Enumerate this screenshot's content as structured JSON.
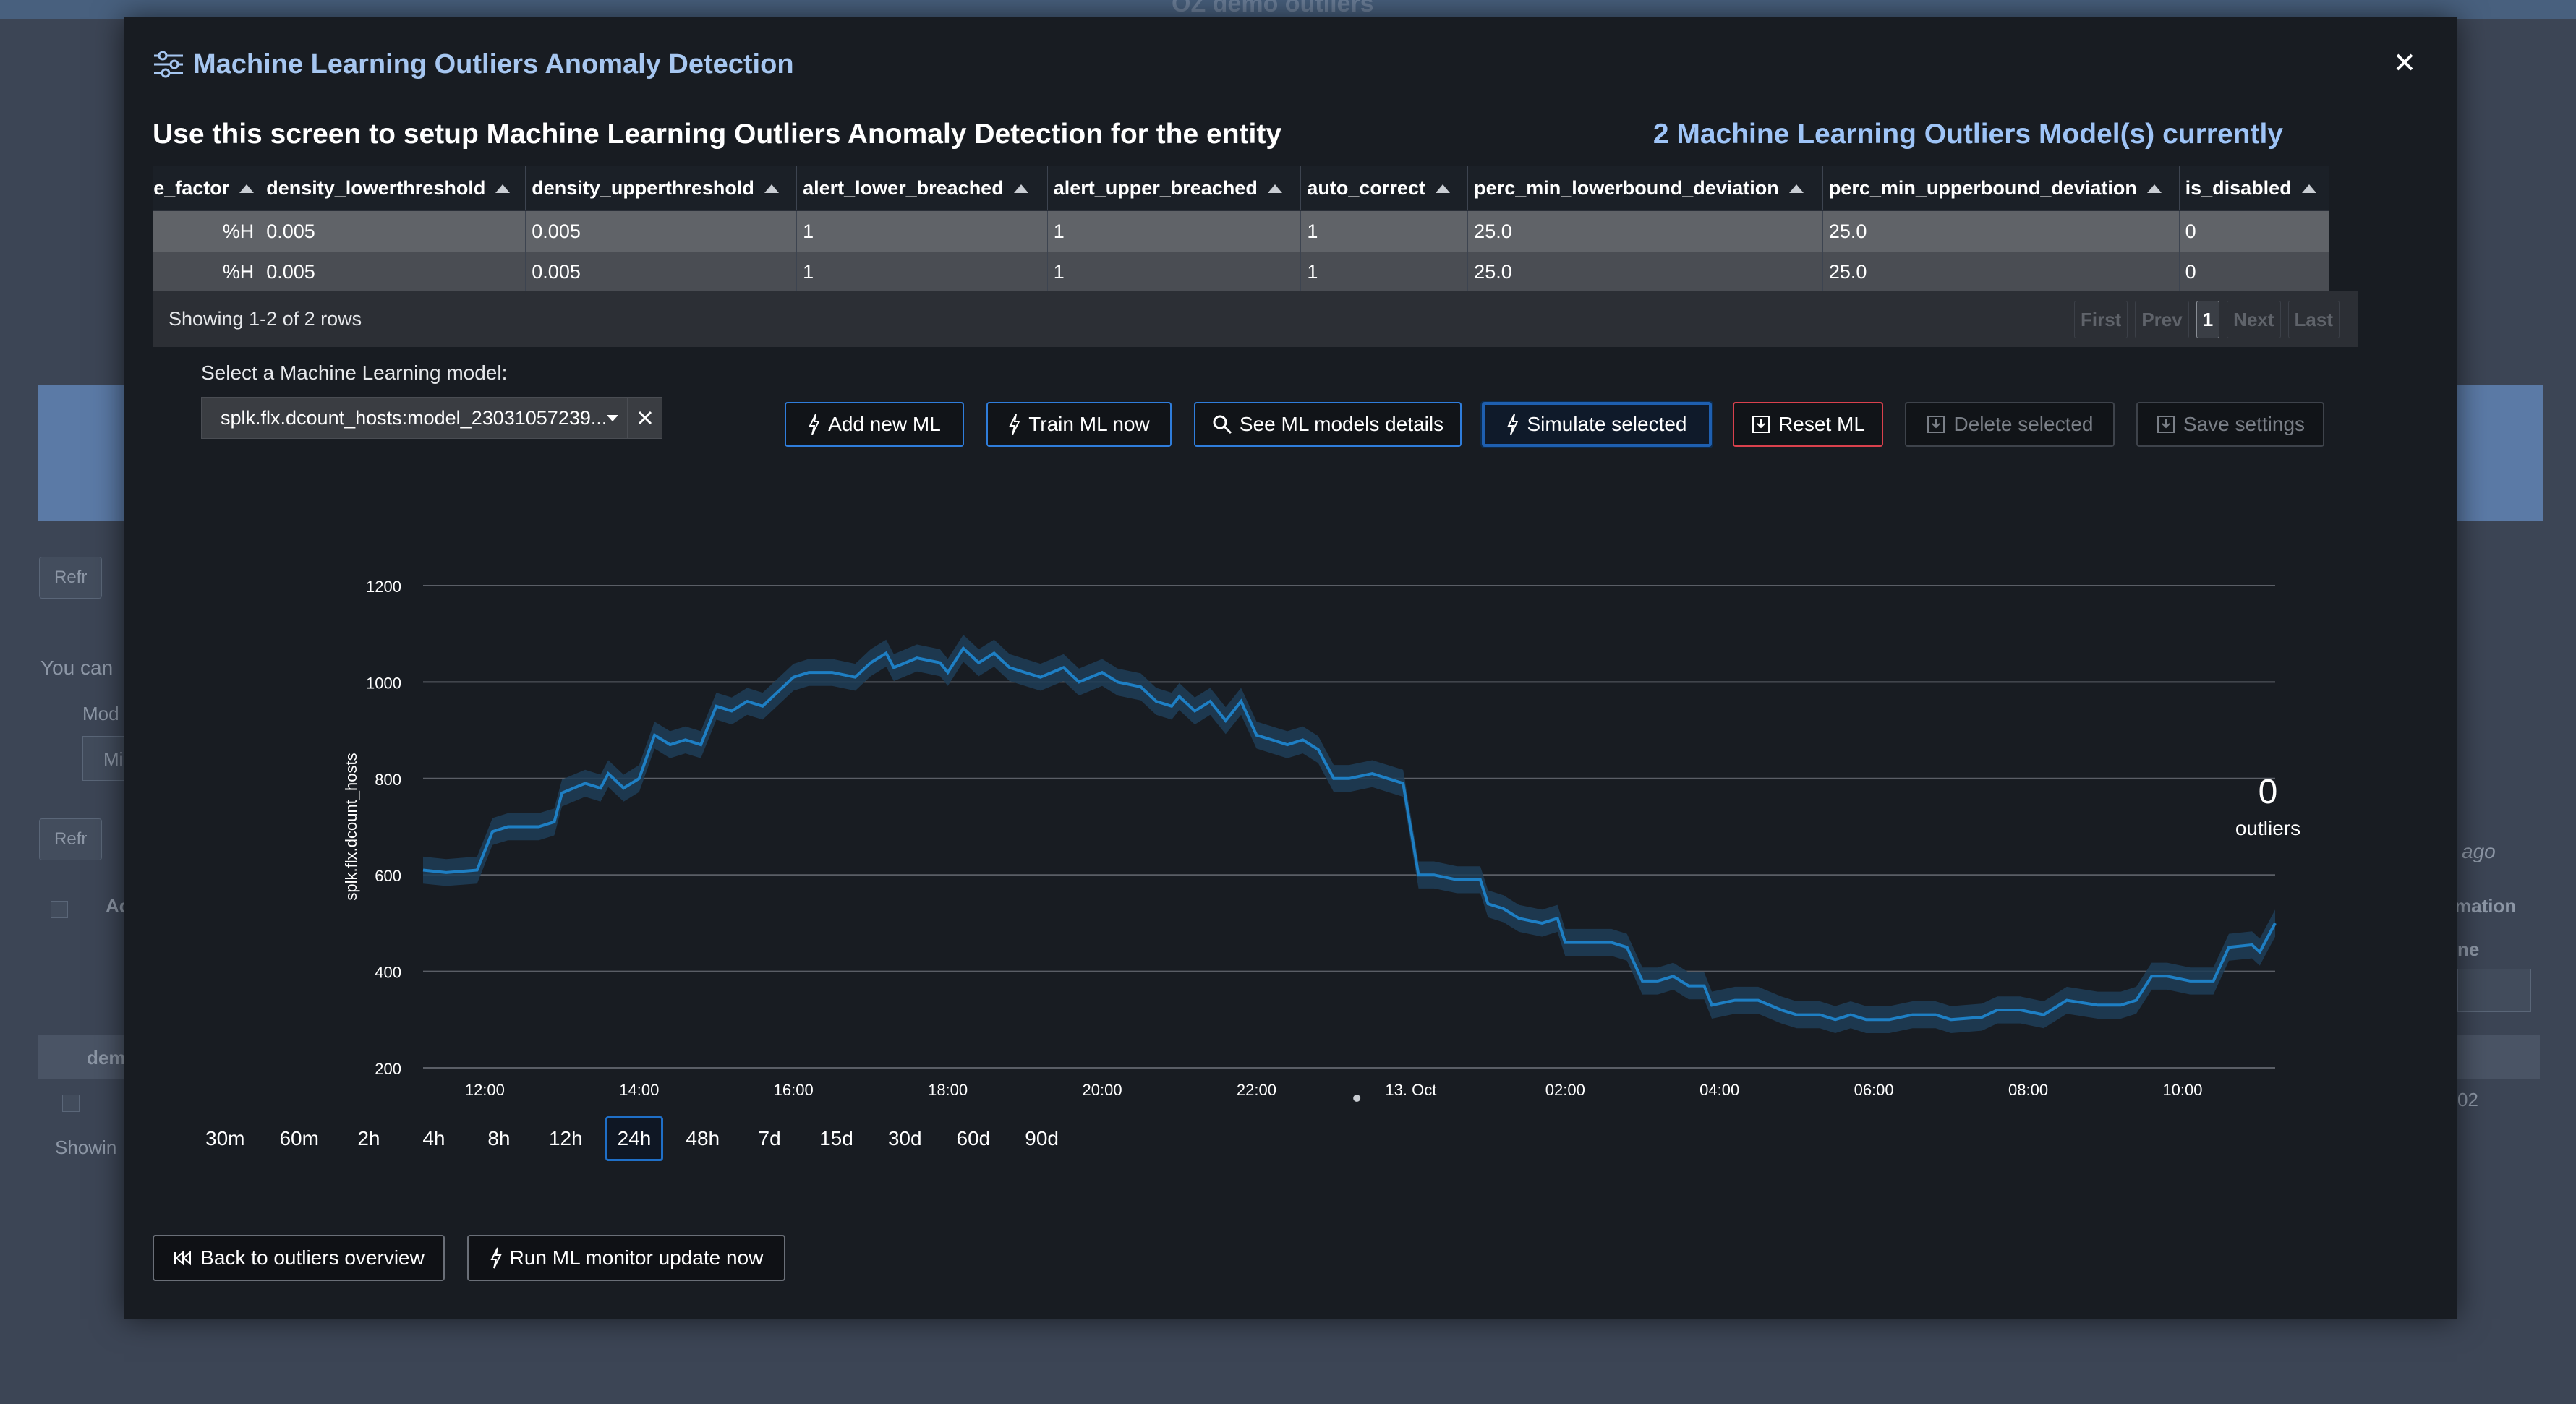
{
  "background": {
    "top_title": "OZ demo outliers",
    "refresh_label_1": "Refr",
    "refresh_label_2": "Refr",
    "you_can_text": "You can",
    "model_label": "Mod",
    "mi_text": "Mi",
    "ago_text": "ago",
    "ac_header": "Ac",
    "mation_header": "mation",
    "ne_header": "ne",
    "dem_text": "dem",
    "showing_text": "Showin",
    "cell_02": "02"
  },
  "modal": {
    "title": "Machine Learning Outliers Anomaly Detection",
    "intro": "Use this screen to setup Machine Learning Outliers Anomaly Detection for the entity",
    "model_count": "2 Machine Learning Outliers Model(s) currently"
  },
  "table": {
    "columns": [
      "ne_factor",
      "density_lowerthreshold",
      "density_upperthreshold",
      "alert_lower_breached",
      "alert_upper_breached",
      "auto_correct",
      "perc_min_lowerbound_deviation",
      "perc_min_upperbound_deviation",
      "is_disabled"
    ],
    "rows": [
      [
        "%H",
        "0.005",
        "0.005",
        "1",
        "1",
        "1",
        "25.0",
        "25.0",
        "0"
      ],
      [
        "%H",
        "0.005",
        "0.005",
        "1",
        "1",
        "1",
        "25.0",
        "25.0",
        "0"
      ]
    ],
    "showing": "Showing 1-2 of 2 rows",
    "pager": {
      "first": "First",
      "prev": "Prev",
      "page": "1",
      "next": "Next",
      "last": "Last"
    }
  },
  "model_select": {
    "label": "Select a Machine Learning model:",
    "value": "splk.flx.dcount_hosts:model_23031057239..."
  },
  "buttons": {
    "add_new": "Add new ML",
    "train": "Train ML now",
    "see_details": "See ML models details",
    "simulate": "Simulate selected",
    "reset": "Reset ML",
    "delete": "Delete selected",
    "save": "Save settings"
  },
  "outliers": {
    "count": "0",
    "label": "outliers"
  },
  "time_ranges": [
    "30m",
    "60m",
    "2h",
    "4h",
    "8h",
    "12h",
    "24h",
    "48h",
    "7d",
    "15d",
    "30d",
    "60d",
    "90d"
  ],
  "time_range_selected": "24h",
  "footer": {
    "back": "Back to outliers overview",
    "run_monitor": "Run ML monitor update now"
  },
  "colors": {
    "accent": "#1f6fc7",
    "line": "#1e7fc4",
    "band": "#1f3d57",
    "danger": "#d9414d",
    "title": "#a6c6f0"
  },
  "chart_data": {
    "type": "line",
    "title": "",
    "xlabel": "",
    "ylabel": "splk.flx.dcount_hosts",
    "ylim": [
      200,
      1200
    ],
    "yticks": [
      200,
      400,
      600,
      800,
      1000,
      1200
    ],
    "x_ticks": [
      {
        "h": 1,
        "label": "12:00"
      },
      {
        "h": 3,
        "label": "14:00"
      },
      {
        "h": 5,
        "label": "16:00"
      },
      {
        "h": 7,
        "label": "18:00"
      },
      {
        "h": 9,
        "label": "20:00"
      },
      {
        "h": 11,
        "label": "22:00"
      },
      {
        "h": 13,
        "label": "13. Oct"
      },
      {
        "h": 15,
        "label": "02:00"
      },
      {
        "h": 17,
        "label": "04:00"
      },
      {
        "h": 19,
        "label": "06:00"
      },
      {
        "h": 21,
        "label": "08:00"
      },
      {
        "h": 23,
        "label": "10:00"
      }
    ],
    "x_range_hours": [
      0.2,
      24.2
    ],
    "series": [
      {
        "name": "splk.flx.dcount_hosts",
        "points": [
          [
            0.2,
            610
          ],
          [
            0.5,
            605
          ],
          [
            0.9,
            610
          ],
          [
            1.1,
            690
          ],
          [
            1.3,
            700
          ],
          [
            1.7,
            700
          ],
          [
            1.9,
            710
          ],
          [
            2.0,
            770
          ],
          [
            2.3,
            790
          ],
          [
            2.5,
            780
          ],
          [
            2.6,
            810
          ],
          [
            2.8,
            780
          ],
          [
            3.0,
            800
          ],
          [
            3.2,
            890
          ],
          [
            3.4,
            870
          ],
          [
            3.6,
            880
          ],
          [
            3.8,
            870
          ],
          [
            4.0,
            950
          ],
          [
            4.2,
            940
          ],
          [
            4.4,
            960
          ],
          [
            4.6,
            950
          ],
          [
            4.8,
            980
          ],
          [
            5.0,
            1010
          ],
          [
            5.2,
            1020
          ],
          [
            5.5,
            1020
          ],
          [
            5.8,
            1010
          ],
          [
            6.0,
            1040
          ],
          [
            6.2,
            1060
          ],
          [
            6.3,
            1030
          ],
          [
            6.6,
            1050
          ],
          [
            6.9,
            1040
          ],
          [
            7.0,
            1020
          ],
          [
            7.2,
            1070
          ],
          [
            7.4,
            1040
          ],
          [
            7.6,
            1060
          ],
          [
            7.8,
            1030
          ],
          [
            8.0,
            1020
          ],
          [
            8.2,
            1010
          ],
          [
            8.5,
            1030
          ],
          [
            8.7,
            1000
          ],
          [
            9.0,
            1020
          ],
          [
            9.2,
            1000
          ],
          [
            9.5,
            990
          ],
          [
            9.7,
            960
          ],
          [
            9.9,
            950
          ],
          [
            10.0,
            970
          ],
          [
            10.2,
            940
          ],
          [
            10.4,
            960
          ],
          [
            10.6,
            920
          ],
          [
            10.8,
            960
          ],
          [
            11.0,
            890
          ],
          [
            11.2,
            880
          ],
          [
            11.4,
            870
          ],
          [
            11.6,
            880
          ],
          [
            11.8,
            860
          ],
          [
            12.0,
            800
          ],
          [
            12.2,
            800
          ],
          [
            12.5,
            810
          ],
          [
            12.7,
            800
          ],
          [
            12.9,
            790
          ],
          [
            13.1,
            600
          ],
          [
            13.3,
            600
          ],
          [
            13.6,
            590
          ],
          [
            13.9,
            590
          ],
          [
            14.0,
            540
          ],
          [
            14.2,
            530
          ],
          [
            14.4,
            510
          ],
          [
            14.7,
            500
          ],
          [
            14.9,
            510
          ],
          [
            15.0,
            460
          ],
          [
            15.3,
            460
          ],
          [
            15.6,
            460
          ],
          [
            15.8,
            450
          ],
          [
            16.0,
            380
          ],
          [
            16.2,
            380
          ],
          [
            16.4,
            390
          ],
          [
            16.6,
            370
          ],
          [
            16.8,
            370
          ],
          [
            16.9,
            330
          ],
          [
            17.2,
            340
          ],
          [
            17.5,
            340
          ],
          [
            17.8,
            320
          ],
          [
            18.0,
            310
          ],
          [
            18.3,
            310
          ],
          [
            18.5,
            300
          ],
          [
            18.7,
            310
          ],
          [
            18.9,
            300
          ],
          [
            19.2,
            300
          ],
          [
            19.5,
            310
          ],
          [
            19.8,
            310
          ],
          [
            20.0,
            300
          ],
          [
            20.4,
            305
          ],
          [
            20.6,
            320
          ],
          [
            20.9,
            320
          ],
          [
            21.2,
            310
          ],
          [
            21.5,
            340
          ],
          [
            21.9,
            330
          ],
          [
            22.2,
            330
          ],
          [
            22.4,
            340
          ],
          [
            22.6,
            390
          ],
          [
            22.8,
            390
          ],
          [
            23.1,
            380
          ],
          [
            23.4,
            380
          ],
          [
            23.6,
            450
          ],
          [
            23.9,
            455
          ],
          [
            24.0,
            440
          ],
          [
            24.1,
            470
          ],
          [
            24.2,
            500
          ]
        ]
      }
    ]
  }
}
